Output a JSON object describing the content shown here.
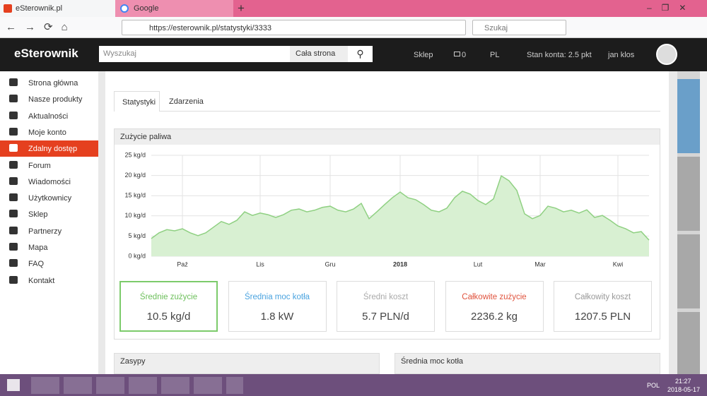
{
  "browser": {
    "tabs": [
      "eSterownik.pl",
      "Google"
    ],
    "url": "https://esterownik.pl/statystyki/3333",
    "search_placeholder": "Szukaj"
  },
  "navbar": {
    "logo": "eSterownik",
    "search_placeholder": "Wyszukaj",
    "scope": "Cała strona",
    "shop": "Sklep",
    "messages": "0",
    "lang": "PL",
    "balance": "Stan konta: 2.5 pkt",
    "user": "jan klos"
  },
  "sidebar": {
    "items": [
      "Strona główna",
      "Nasze produkty",
      "Aktualności",
      "Moje konto",
      "Zdalny dostęp",
      "Forum",
      "Wiadomości",
      "Użytkownicy",
      "Sklep",
      "Partnerzy",
      "Mapa",
      "FAQ",
      "Kontakt"
    ],
    "active": 4
  },
  "tabs": [
    "Statystyki",
    "Zdarzenia"
  ],
  "fuel_chart": {
    "type": "area",
    "title": "Zużycie paliwa",
    "color": "#8fd082",
    "fill": "#d8f0d2",
    "grid": true,
    "categories": [
      null,
      null,
      null,
      null,
      "Paź",
      null,
      null,
      null,
      null,
      null,
      null,
      null,
      null,
      null,
      "Lis",
      null,
      null,
      null,
      null,
      null,
      null,
      null,
      null,
      "Gru",
      null,
      null,
      null,
      null,
      null,
      null,
      null,
      null,
      "2018",
      null,
      null,
      null,
      null,
      null,
      null,
      null,
      null,
      null,
      "Lut",
      null,
      null,
      null,
      null,
      null,
      null,
      null,
      "Mar",
      null,
      null,
      null,
      null,
      null,
      null,
      null,
      null,
      null,
      "Kwi",
      null,
      null,
      null,
      null
    ],
    "values": [
      4.4,
      5.8,
      6.6,
      6.3,
      6.8,
      5.8,
      5.1,
      5.8,
      7.2,
      8.6,
      7.9,
      8.9,
      11.0,
      10.1,
      10.7,
      10.3,
      9.6,
      10.3,
      11.4,
      11.7,
      11.0,
      11.4,
      12.1,
      12.4,
      11.4,
      11.0,
      11.7,
      13.1,
      9.3,
      11.0,
      12.8,
      14.5,
      15.9,
      14.5,
      14.0,
      12.8,
      11.4,
      11.0,
      11.9,
      14.5,
      16.1,
      15.4,
      13.8,
      12.8,
      14.2,
      19.9,
      18.7,
      16.3,
      10.5,
      9.3,
      10.1,
      12.4,
      11.9,
      11.0,
      11.4,
      10.7,
      11.5,
      9.6,
      10.1,
      8.9,
      7.5,
      6.8,
      5.8,
      6.1,
      4.0
    ],
    "ylim": [
      0,
      25
    ],
    "yticks": [
      {
        "value": 0,
        "label": "0 kg/d"
      },
      {
        "value": 5,
        "label": "5 kg/d"
      },
      {
        "value": 10,
        "label": "10 kg/d"
      },
      {
        "value": 15,
        "label": "15 kg/d"
      },
      {
        "value": 20,
        "label": "20 kg/d"
      },
      {
        "value": 25,
        "label": "25 kg/d"
      }
    ]
  },
  "stats": [
    {
      "label": "Średnie zużycie",
      "value": "10.5 kg/d"
    },
    {
      "label": "Średnia moc kotła",
      "value": "1.8 kW"
    },
    {
      "label": "Średni koszt",
      "value": "5.7 PLN/d"
    },
    {
      "label": "Całkowite zużycie",
      "value": "2236.2 kg"
    },
    {
      "label": "Całkowity koszt",
      "value": "1207.5 PLN"
    }
  ],
  "panels": [
    "Zasypy",
    "Średnia moc kotła"
  ],
  "taskbar": {
    "lang": "POL",
    "time": "21:27",
    "date": "2018-05-17"
  }
}
